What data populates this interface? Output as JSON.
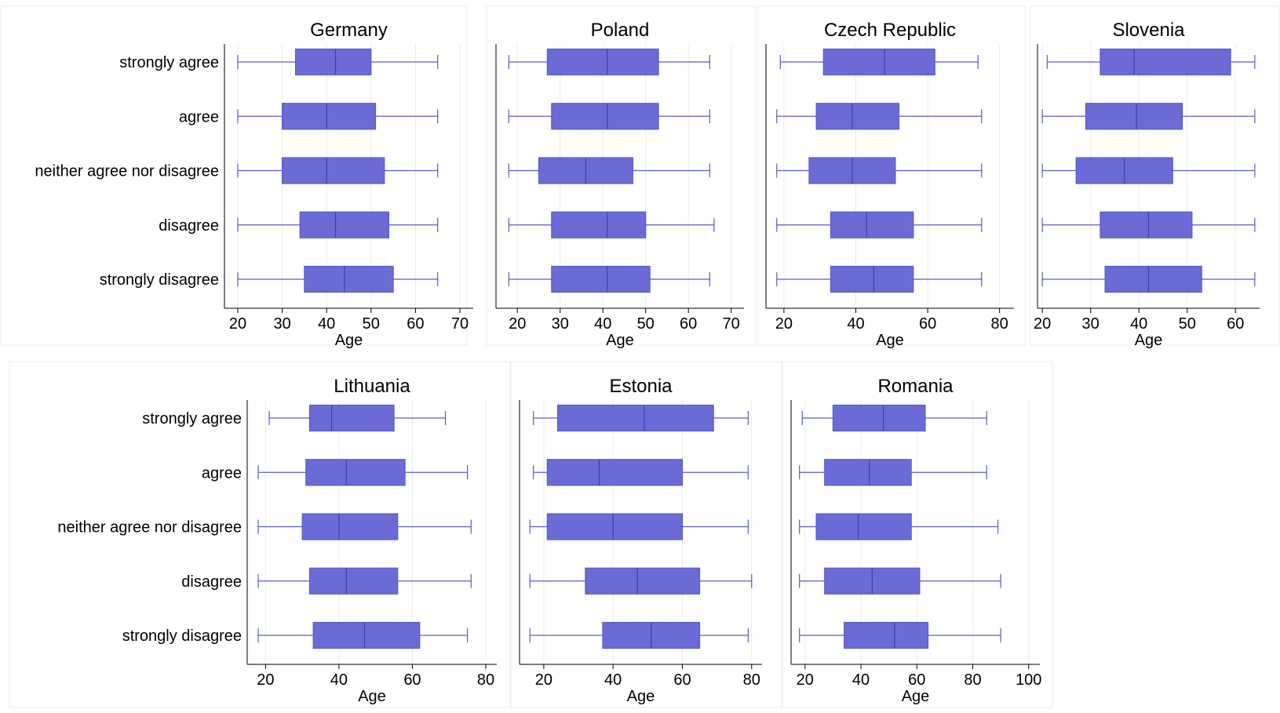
{
  "colors": {
    "box_fill": "#6b6bd6",
    "box_stroke": "#5a5ad0",
    "median": "#3d3db8",
    "grid": "#e9edf1"
  },
  "chart_data": [
    {
      "type": "boxplot",
      "title": "Germany",
      "xlabel": "Age",
      "xticks": [
        20,
        30,
        40,
        50,
        60,
        70
      ],
      "xlim": [
        17,
        73
      ],
      "grid": true,
      "categories": [
        "strongly agree",
        "agree",
        "neither agree nor disagree",
        "disagree",
        "strongly disagree"
      ],
      "series": [
        {
          "min": 20,
          "q1": 33,
          "median": 42,
          "q3": 50,
          "max": 65
        },
        {
          "min": 20,
          "q1": 30,
          "median": 40,
          "q3": 51,
          "max": 65
        },
        {
          "min": 20,
          "q1": 30,
          "median": 40,
          "q3": 53,
          "max": 65
        },
        {
          "min": 20,
          "q1": 34,
          "median": 42,
          "q3": 54,
          "max": 65
        },
        {
          "min": 20,
          "q1": 35,
          "median": 44,
          "q3": 55,
          "max": 65
        }
      ]
    },
    {
      "type": "boxplot",
      "title": "Poland",
      "xlabel": "Age",
      "xticks": [
        20,
        30,
        40,
        50,
        60,
        70
      ],
      "xlim": [
        15,
        73
      ],
      "grid": true,
      "categories": [
        "strongly agree",
        "agree",
        "neither agree nor disagree",
        "disagree",
        "strongly disagree"
      ],
      "series": [
        {
          "min": 18,
          "q1": 27,
          "median": 41,
          "q3": 53,
          "max": 65
        },
        {
          "min": 18,
          "q1": 28,
          "median": 41,
          "q3": 53,
          "max": 65
        },
        {
          "min": 18,
          "q1": 25,
          "median": 36,
          "q3": 47,
          "max": 65
        },
        {
          "min": 18,
          "q1": 28,
          "median": 41,
          "q3": 50,
          "max": 66
        },
        {
          "min": 18,
          "q1": 28,
          "median": 41,
          "q3": 51,
          "max": 65
        }
      ]
    },
    {
      "type": "boxplot",
      "title": "Czech Republic",
      "xlabel": "Age",
      "xticks": [
        20,
        40,
        60,
        80
      ],
      "xlim": [
        15,
        84
      ],
      "grid": true,
      "categories": [
        "strongly agree",
        "agree",
        "neither agree nor disagree",
        "disagree",
        "strongly disagree"
      ],
      "series": [
        {
          "min": 19,
          "q1": 31,
          "median": 48,
          "q3": 62,
          "max": 74
        },
        {
          "min": 18,
          "q1": 29,
          "median": 39,
          "q3": 52,
          "max": 75
        },
        {
          "min": 18,
          "q1": 27,
          "median": 39,
          "q3": 51,
          "max": 75
        },
        {
          "min": 18,
          "q1": 33,
          "median": 43,
          "q3": 56,
          "max": 75
        },
        {
          "min": 18,
          "q1": 33,
          "median": 45,
          "q3": 56,
          "max": 75
        }
      ]
    },
    {
      "type": "boxplot",
      "title": "Slovenia",
      "xlabel": "Age",
      "xticks": [
        20,
        30,
        40,
        50,
        60
      ],
      "xlim": [
        19,
        65
      ],
      "grid": true,
      "categories": [
        "strongly agree",
        "agree",
        "neither agree nor disagree",
        "disagree",
        "strongly disagree"
      ],
      "series": [
        {
          "min": 21,
          "q1": 32,
          "median": 39,
          "q3": 59,
          "max": 64
        },
        {
          "min": 20,
          "q1": 29,
          "median": 39.5,
          "q3": 49,
          "max": 64
        },
        {
          "min": 20,
          "q1": 27,
          "median": 37,
          "q3": 47,
          "max": 64
        },
        {
          "min": 20,
          "q1": 32,
          "median": 42,
          "q3": 51,
          "max": 64
        },
        {
          "min": 20,
          "q1": 33,
          "median": 42,
          "q3": 53,
          "max": 64
        }
      ]
    },
    {
      "type": "boxplot",
      "title": "Lithuania",
      "xlabel": "Age",
      "xticks": [
        20,
        40,
        60,
        80
      ],
      "xlim": [
        15,
        83
      ],
      "grid": true,
      "categories": [
        "strongly agree",
        "agree",
        "neither agree nor disagree",
        "disagree",
        "strongly disagree"
      ],
      "series": [
        {
          "min": 21,
          "q1": 32,
          "median": 38,
          "q3": 55,
          "max": 69
        },
        {
          "min": 18,
          "q1": 31,
          "median": 42,
          "q3": 58,
          "max": 75
        },
        {
          "min": 18,
          "q1": 30,
          "median": 40,
          "q3": 56,
          "max": 76
        },
        {
          "min": 18,
          "q1": 32,
          "median": 42,
          "q3": 56,
          "max": 76
        },
        {
          "min": 18,
          "q1": 33,
          "median": 47,
          "q3": 62,
          "max": 75
        }
      ]
    },
    {
      "type": "boxplot",
      "title": "Estonia",
      "xlabel": "Age",
      "xticks": [
        20,
        40,
        60,
        80
      ],
      "xlim": [
        13,
        83
      ],
      "grid": true,
      "categories": [
        "strongly agree",
        "agree",
        "neither agree nor disagree",
        "disagree",
        "strongly disagree"
      ],
      "series": [
        {
          "min": 17,
          "q1": 24,
          "median": 49,
          "q3": 69,
          "max": 79
        },
        {
          "min": 17,
          "q1": 21,
          "median": 36,
          "q3": 60,
          "max": 79
        },
        {
          "min": 16,
          "q1": 21,
          "median": 40,
          "q3": 60,
          "max": 79
        },
        {
          "min": 16,
          "q1": 32,
          "median": 47,
          "q3": 65,
          "max": 80
        },
        {
          "min": 16,
          "q1": 37,
          "median": 51,
          "q3": 65,
          "max": 79
        }
      ]
    },
    {
      "type": "boxplot",
      "title": "Romania",
      "xlabel": "Age",
      "xticks": [
        20,
        40,
        60,
        80,
        100
      ],
      "xlim": [
        15,
        104
      ],
      "grid": true,
      "categories": [
        "strongly agree",
        "agree",
        "neither agree nor disagree",
        "disagree",
        "strongly disagree"
      ],
      "series": [
        {
          "min": 19,
          "q1": 30,
          "median": 48,
          "q3": 63,
          "max": 85
        },
        {
          "min": 18,
          "q1": 27,
          "median": 43,
          "q3": 58,
          "max": 85
        },
        {
          "min": 18,
          "q1": 24,
          "median": 39,
          "q3": 58,
          "max": 89
        },
        {
          "min": 18,
          "q1": 27,
          "median": 44,
          "q3": 61,
          "max": 90
        },
        {
          "min": 18,
          "q1": 34,
          "median": 52,
          "q3": 64,
          "max": 90
        }
      ]
    }
  ]
}
